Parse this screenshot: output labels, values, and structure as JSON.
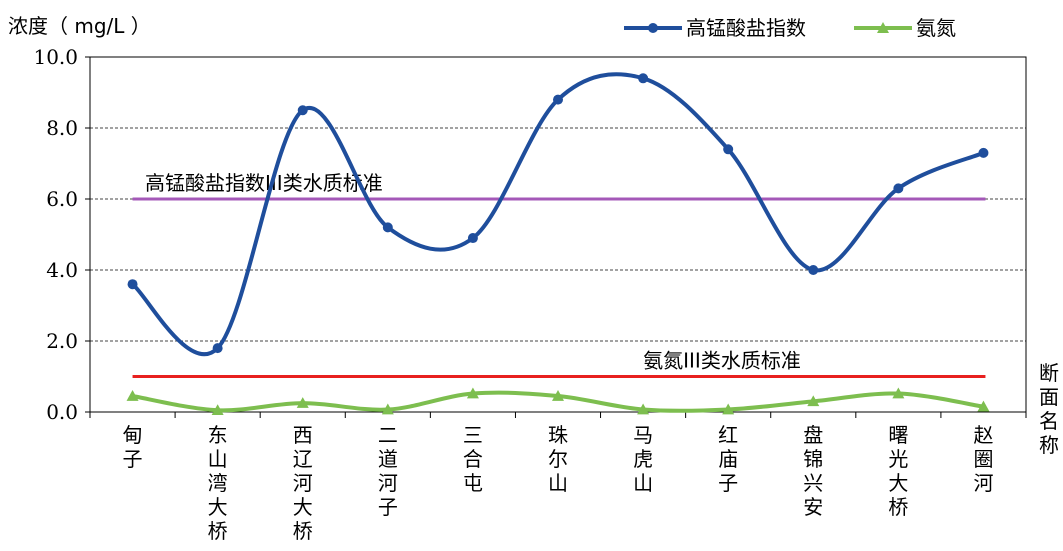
{
  "chart_data": {
    "type": "line",
    "ylabel": "浓度（ mg/L ）",
    "xlabel": "断面名称",
    "ylim": [
      0,
      10
    ],
    "y_ticks": [
      "0.0",
      "2.0",
      "4.0",
      "6.0",
      "8.0",
      "10.0"
    ],
    "categories": [
      "甸子",
      "东山湾大桥",
      "西辽河大桥",
      "二道河子",
      "三合屯",
      "珠尔山",
      "马虎山",
      "红庙子",
      "盘锦兴安",
      "曙光大桥",
      "赵圈河"
    ],
    "series": [
      {
        "name": "高锰酸盐指数",
        "color": "#1f4e9c",
        "marker": "circle",
        "values": [
          3.6,
          1.8,
          8.5,
          5.2,
          4.9,
          8.8,
          9.4,
          7.4,
          4.0,
          6.3,
          7.3
        ]
      },
      {
        "name": "氨氮",
        "color": "#7dbe4f",
        "marker": "triangle",
        "values": [
          0.45,
          0.05,
          0.25,
          0.07,
          0.52,
          0.45,
          0.07,
          0.07,
          0.3,
          0.52,
          0.15
        ]
      }
    ],
    "reference_lines": [
      {
        "label": "高锰酸盐指数III类水质标准",
        "value": 6.0,
        "color": "#a458b8"
      },
      {
        "label": "氨氮III类水质标准",
        "value": 1.0,
        "color": "#e8201f"
      }
    ],
    "grid": true,
    "legend_position": "top-right"
  }
}
